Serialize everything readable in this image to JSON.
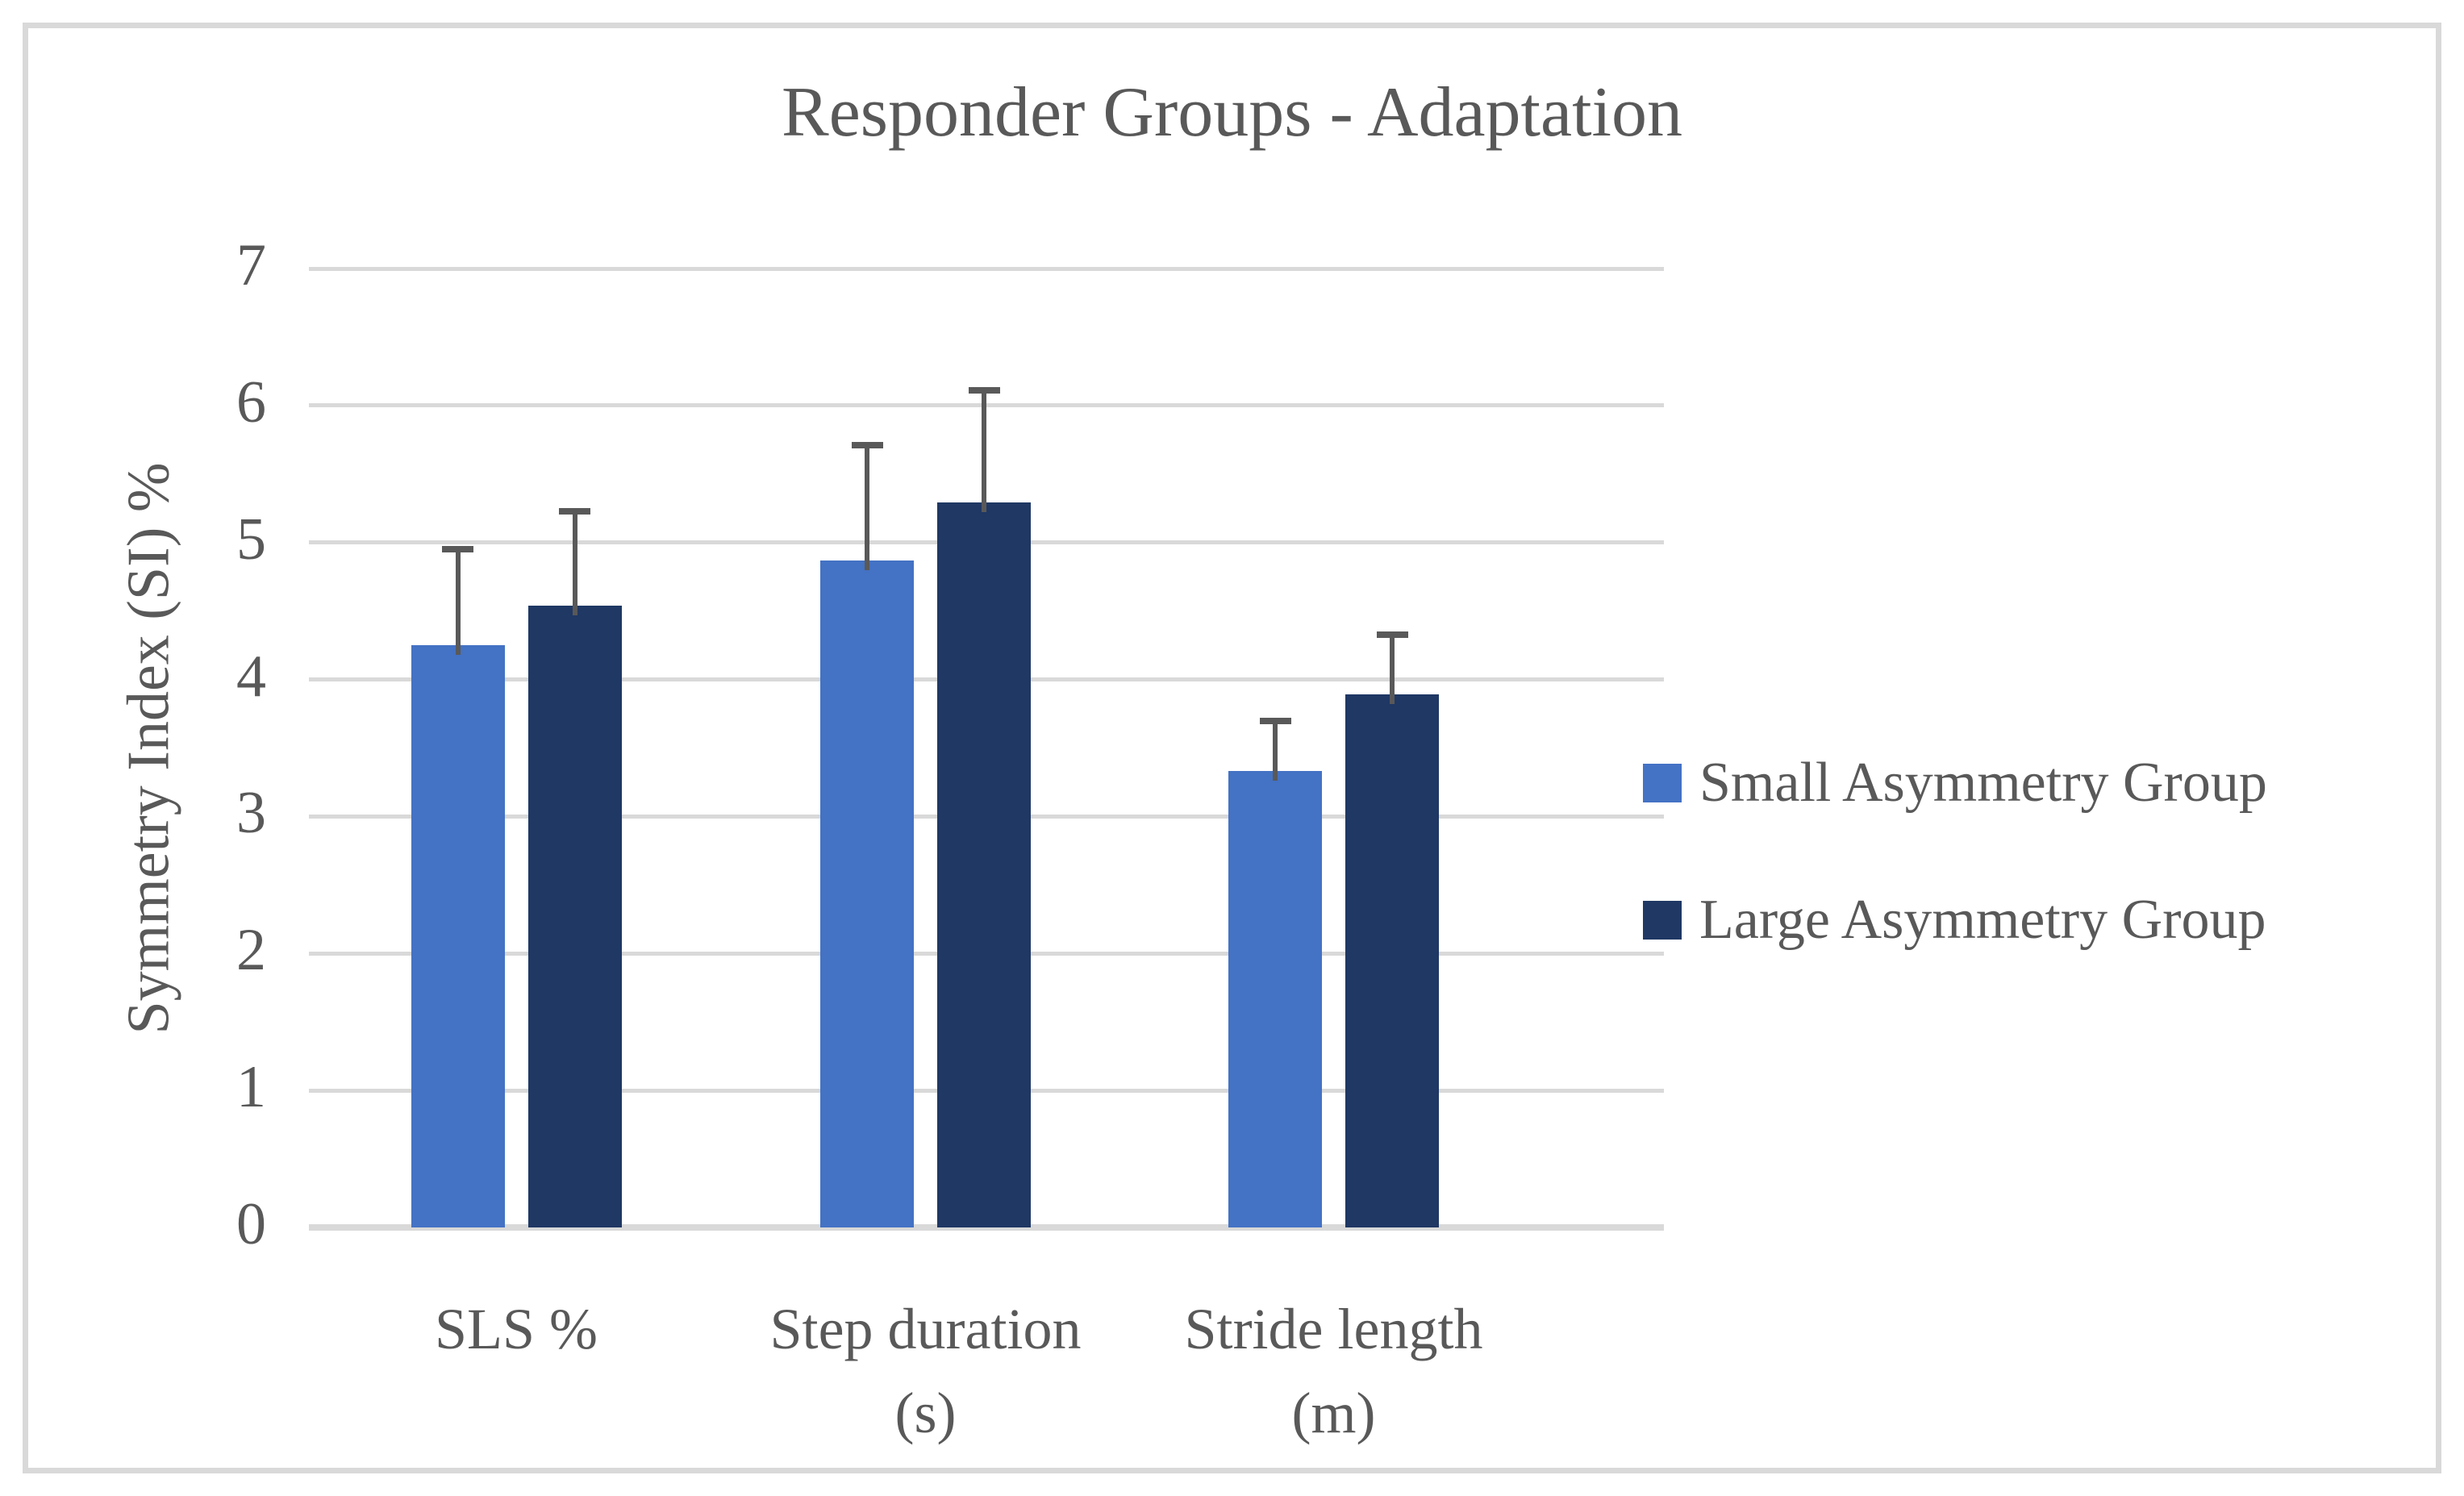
{
  "title": "Responder Groups - Adaptation",
  "chart_data": {
    "type": "bar",
    "title": "Responder Groups - Adaptation",
    "ylabel": "Symmetry Index (SI) %",
    "xlabel": "",
    "ylim": [
      0,
      7
    ],
    "ytick_step": 1,
    "ytick_labels": [
      "0",
      "1",
      "2",
      "3",
      "4",
      "5",
      "6",
      "7"
    ],
    "grid": true,
    "legend_position": "right",
    "categories": [
      {
        "label": "SLS %",
        "unit": ""
      },
      {
        "label": "Step duration",
        "unit": "(s)"
      },
      {
        "label": "Stride length",
        "unit": "(m)"
      }
    ],
    "series": [
      {
        "name": "Small Asymmetry Group",
        "color": "#4472C4",
        "values": [
          4.25,
          4.87,
          3.33
        ],
        "errors": [
          0.7,
          0.84,
          0.37
        ],
        "error_tops": [
          4.95,
          5.71,
          3.7
        ]
      },
      {
        "name": "Large Asymmetry Group",
        "color": "#1F3864",
        "values": [
          4.54,
          5.29,
          3.89
        ],
        "errors": [
          0.69,
          0.82,
          0.44
        ],
        "error_tops": [
          5.23,
          6.11,
          4.33
        ]
      }
    ],
    "colors": {
      "text": "#595959",
      "gridline": "#D9D9D9",
      "error_bar": "#595959",
      "frame_border": "#D9D9D9",
      "background": "#FFFFFF"
    }
  }
}
